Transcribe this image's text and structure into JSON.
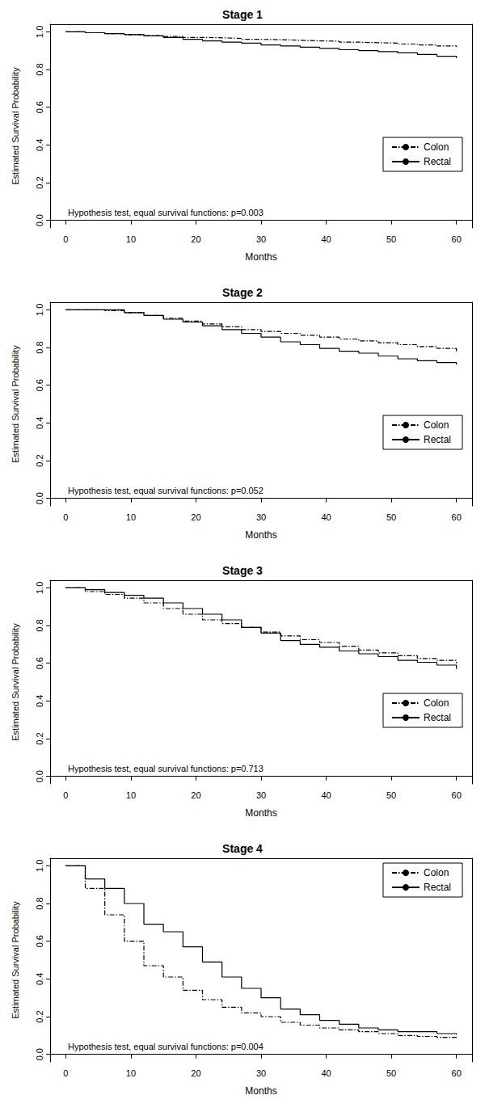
{
  "chart_data": [
    {
      "type": "line",
      "title": "Stage 1",
      "x_label": "Months",
      "y_label": "Estimated Survival Probability",
      "annotation": "Hypothesis test, equal survival functions: p=0.003",
      "x": [
        0,
        3,
        6,
        9,
        12,
        15,
        18,
        21,
        24,
        27,
        30,
        33,
        36,
        39,
        42,
        45,
        48,
        51,
        54,
        57,
        60
      ],
      "series": [
        {
          "name": "Colon",
          "color": "#000000",
          "line_style": "dashed",
          "values": [
            1.0,
            0.995,
            0.99,
            0.985,
            0.98,
            0.975,
            0.97,
            0.968,
            0.965,
            0.96,
            0.958,
            0.955,
            0.952,
            0.95,
            0.945,
            0.942,
            0.94,
            0.935,
            0.93,
            0.925,
            0.92
          ]
        },
        {
          "name": "Rectal",
          "color": "#000000",
          "line_style": "solid",
          "values": [
            1.0,
            0.995,
            0.99,
            0.985,
            0.978,
            0.97,
            0.96,
            0.952,
            0.945,
            0.94,
            0.93,
            0.925,
            0.918,
            0.912,
            0.905,
            0.9,
            0.895,
            0.888,
            0.88,
            0.87,
            0.86
          ]
        }
      ],
      "xlim": [
        -2.4,
        62.4
      ],
      "xticks": [
        0,
        10,
        20,
        30,
        40,
        50,
        60
      ],
      "ylim": [
        -0.04,
        1.04
      ],
      "yticks": [
        {
          "value": 0,
          "label": "0.0"
        },
        0.2,
        0.4,
        0.6,
        0.8,
        {
          "value": 1,
          "label": "1.0"
        }
      ],
      "grid": false,
      "legend": "lower right"
    },
    {
      "type": "line",
      "title": "Stage 2",
      "x_label": "Months",
      "y_label": "Estimated Survival Probability",
      "annotation": "Hypothesis test, equal survival functions: p=0.052",
      "x": [
        0,
        3,
        6,
        9,
        12,
        15,
        18,
        21,
        24,
        27,
        30,
        33,
        36,
        39,
        42,
        45,
        48,
        51,
        54,
        57,
        60
      ],
      "series": [
        {
          "name": "Colon",
          "color": "#000000",
          "line_style": "dashed",
          "values": [
            1.0,
            1.0,
            0.995,
            0.985,
            0.97,
            0.955,
            0.94,
            0.925,
            0.91,
            0.895,
            0.885,
            0.875,
            0.865,
            0.855,
            0.845,
            0.835,
            0.825,
            0.815,
            0.805,
            0.795,
            0.78
          ]
        },
        {
          "name": "Rectal",
          "color": "#000000",
          "line_style": "solid",
          "values": [
            1.0,
            1.0,
            1.0,
            0.985,
            0.97,
            0.95,
            0.935,
            0.915,
            0.895,
            0.875,
            0.855,
            0.83,
            0.815,
            0.795,
            0.78,
            0.77,
            0.755,
            0.74,
            0.73,
            0.72,
            0.71
          ]
        }
      ],
      "xlim": [
        -2.4,
        62.4
      ],
      "xticks": [
        0,
        10,
        20,
        30,
        40,
        50,
        60
      ],
      "ylim": [
        -0.04,
        1.04
      ],
      "yticks": [
        {
          "value": 0,
          "label": "0.0"
        },
        0.2,
        0.4,
        0.6,
        0.8,
        {
          "value": 1,
          "label": "1.0"
        }
      ],
      "grid": false,
      "legend": "lower right"
    },
    {
      "type": "line",
      "title": "Stage 3",
      "x_label": "Months",
      "y_label": "Estimated Survival Probability",
      "annotation": "Hypothesis test, equal survival functions: p=0.713",
      "x": [
        0,
        3,
        6,
        9,
        12,
        15,
        18,
        21,
        24,
        27,
        30,
        33,
        36,
        39,
        42,
        45,
        48,
        51,
        54,
        57,
        60
      ],
      "series": [
        {
          "name": "Colon",
          "color": "#000000",
          "line_style": "dashed",
          "values": [
            1.0,
            0.98,
            0.965,
            0.945,
            0.92,
            0.89,
            0.86,
            0.83,
            0.81,
            0.79,
            0.765,
            0.745,
            0.725,
            0.71,
            0.69,
            0.67,
            0.655,
            0.64,
            0.625,
            0.615,
            0.6
          ]
        },
        {
          "name": "Rectal",
          "color": "#000000",
          "line_style": "solid",
          "values": [
            1.0,
            0.99,
            0.975,
            0.96,
            0.945,
            0.92,
            0.89,
            0.86,
            0.83,
            0.79,
            0.76,
            0.72,
            0.7,
            0.685,
            0.665,
            0.65,
            0.635,
            0.615,
            0.605,
            0.59,
            0.57
          ]
        }
      ],
      "xlim": [
        -2.4,
        62.4
      ],
      "xticks": [
        0,
        10,
        20,
        30,
        40,
        50,
        60
      ],
      "ylim": [
        -0.04,
        1.04
      ],
      "yticks": [
        {
          "value": 0,
          "label": "0.0"
        },
        0.2,
        0.4,
        0.6,
        0.8,
        {
          "value": 1,
          "label": "1.0"
        }
      ],
      "grid": false,
      "legend": "lower right"
    },
    {
      "type": "line",
      "title": "Stage 4",
      "x_label": "Months",
      "y_label": "Estimated Survival Probability",
      "annotation": "Hypothesis test, equal survival functions: p=0.004",
      "x": [
        0,
        3,
        6,
        9,
        12,
        15,
        18,
        21,
        24,
        27,
        30,
        33,
        36,
        39,
        42,
        45,
        48,
        51,
        54,
        57,
        60
      ],
      "series": [
        {
          "name": "Colon",
          "color": "#000000",
          "line_style": "dashed",
          "values": [
            1.0,
            0.88,
            0.74,
            0.6,
            0.47,
            0.41,
            0.34,
            0.29,
            0.25,
            0.22,
            0.2,
            0.17,
            0.155,
            0.14,
            0.13,
            0.12,
            0.11,
            0.1,
            0.095,
            0.09,
            0.08
          ]
        },
        {
          "name": "Rectal",
          "color": "#000000",
          "line_style": "solid",
          "values": [
            1.0,
            0.93,
            0.88,
            0.8,
            0.69,
            0.65,
            0.57,
            0.49,
            0.41,
            0.35,
            0.3,
            0.24,
            0.21,
            0.18,
            0.16,
            0.14,
            0.13,
            0.12,
            0.12,
            0.11,
            0.105
          ]
        }
      ],
      "xlim": [
        -2.4,
        62.4
      ],
      "xticks": [
        0,
        10,
        20,
        30,
        40,
        50,
        60
      ],
      "ylim": [
        -0.04,
        1.04
      ],
      "yticks": [
        {
          "value": 0,
          "label": "0.0"
        },
        0.2,
        0.4,
        0.6,
        0.8,
        {
          "value": 1,
          "label": "1.0"
        }
      ],
      "grid": false,
      "legend": "upper right"
    }
  ]
}
